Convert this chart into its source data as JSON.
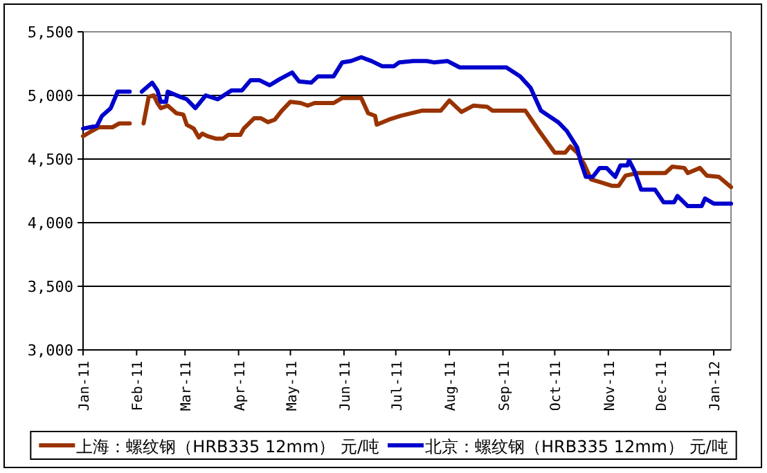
{
  "chart_data": {
    "type": "line",
    "xlim": [
      "2011-01-01",
      "2012-01-11"
    ],
    "xticks": [
      {
        "value": "2011-01-01",
        "label": "Jan-11"
      },
      {
        "value": "2011-02-01",
        "label": "Feb-11"
      },
      {
        "value": "2011-03-01",
        "label": "Mar-11"
      },
      {
        "value": "2011-04-01",
        "label": "Apr-11"
      },
      {
        "value": "2011-05-01",
        "label": "May-11"
      },
      {
        "value": "2011-06-01",
        "label": "Jun-11"
      },
      {
        "value": "2011-07-01",
        "label": "Jul-11"
      },
      {
        "value": "2011-08-01",
        "label": "Aug-11"
      },
      {
        "value": "2011-09-01",
        "label": "Sep-11"
      },
      {
        "value": "2011-10-01",
        "label": "Oct-11"
      },
      {
        "value": "2011-11-01",
        "label": "Nov-11"
      },
      {
        "value": "2011-12-01",
        "label": "Dec-11"
      },
      {
        "value": "2012-01-01",
        "label": "Jan-12"
      }
    ],
    "ylim": [
      3000,
      5500
    ],
    "yticks": [
      {
        "value": 3000,
        "label": "3,000"
      },
      {
        "value": 3500,
        "label": "3,500"
      },
      {
        "value": 4000,
        "label": "4,000"
      },
      {
        "value": 4500,
        "label": "4,500"
      },
      {
        "value": 5000,
        "label": "5,000"
      },
      {
        "value": 5500,
        "label": "5,500"
      }
    ],
    "grid": "y",
    "legend": "bottom",
    "marker": "none",
    "line_style": "solid",
    "series": [
      {
        "name": "上海：螺纹钢（HRB335 12mm） 元/吨",
        "color": "#993300",
        "x": [
          "2011-01-01",
          "2011-01-06",
          "2011-01-10",
          "2011-01-18",
          "2011-01-22",
          "2011-01-28",
          "2011-02-01",
          "2011-02-05",
          "2011-02-08",
          "2011-02-11",
          "2011-02-13",
          "2011-02-15",
          "2011-02-19",
          "2011-02-24",
          "2011-02-28",
          "2011-03-02",
          "2011-03-06",
          "2011-03-09",
          "2011-03-11",
          "2011-03-14",
          "2011-03-19",
          "2011-03-23",
          "2011-03-26",
          "2011-04-02",
          "2011-04-04",
          "2011-04-10",
          "2011-04-14",
          "2011-04-18",
          "2011-04-22",
          "2011-04-26",
          "2011-05-01",
          "2011-05-07",
          "2011-05-11",
          "2011-05-15",
          "2011-05-26",
          "2011-05-31",
          "2011-06-11",
          "2011-06-15",
          "2011-06-19",
          "2011-06-20",
          "2011-06-27",
          "2011-07-04",
          "2011-07-16",
          "2011-07-27",
          "2011-08-01",
          "2011-08-08",
          "2011-08-15",
          "2011-08-23",
          "2011-08-26",
          "2011-09-14",
          "2011-09-22",
          "2011-10-01",
          "2011-10-07",
          "2011-10-10",
          "2011-10-14",
          "2011-10-18",
          "2011-10-22",
          "2011-10-27",
          "2011-11-03",
          "2011-11-07",
          "2011-11-11",
          "2011-11-18",
          "2011-12-04",
          "2011-12-08",
          "2011-12-15",
          "2011-12-17",
          "2011-12-24",
          "2011-12-28",
          "2012-01-04",
          "2012-01-11"
        ],
        "values": [
          4680,
          4720,
          4750,
          4750,
          4780,
          4780,
          null,
          4780,
          4990,
          5000,
          4940,
          4900,
          4920,
          4860,
          4850,
          4770,
          4740,
          4670,
          4700,
          4680,
          4660,
          4660,
          4690,
          4690,
          4740,
          4820,
          4820,
          4790,
          4810,
          4880,
          4950,
          4940,
          4920,
          4940,
          4940,
          4980,
          4980,
          4860,
          4840,
          4770,
          4810,
          4840,
          4880,
          4880,
          4960,
          4870,
          4920,
          4910,
          4880,
          4880,
          4720,
          4550,
          4550,
          4600,
          4550,
          4460,
          4340,
          4320,
          4290,
          4290,
          4370,
          4390,
          4390,
          4440,
          4430,
          4390,
          4430,
          4370,
          4360,
          4280
        ]
      },
      {
        "name": "北京：螺纹钢（HRB335 12mm） 元/吨",
        "color": "#0000cc",
        "x": [
          "2011-01-01",
          "2011-01-05",
          "2011-01-09",
          "2011-01-12",
          "2011-01-17",
          "2011-01-21",
          "2011-01-28",
          "2011-02-01",
          "2011-02-04",
          "2011-02-10",
          "2011-02-13",
          "2011-02-15",
          "2011-02-18",
          "2011-02-19",
          "2011-02-26",
          "2011-03-02",
          "2011-03-07",
          "2011-03-13",
          "2011-03-20",
          "2011-03-28",
          "2011-04-03",
          "2011-04-08",
          "2011-04-13",
          "2011-04-19",
          "2011-04-25",
          "2011-05-02",
          "2011-05-06",
          "2011-05-13",
          "2011-05-17",
          "2011-05-26",
          "2011-05-31",
          "2011-06-05",
          "2011-06-11",
          "2011-06-17",
          "2011-06-23",
          "2011-06-30",
          "2011-07-03",
          "2011-07-11",
          "2011-07-19",
          "2011-07-23",
          "2011-07-31",
          "2011-08-07",
          "2011-09-03",
          "2011-09-11",
          "2011-09-17",
          "2011-09-23",
          "2011-10-03",
          "2011-10-08",
          "2011-10-14",
          "2011-10-16",
          "2011-10-19",
          "2011-10-23",
          "2011-10-27",
          "2011-10-31",
          "2011-11-05",
          "2011-11-08",
          "2011-11-12",
          "2011-11-13",
          "2011-11-16",
          "2011-11-20",
          "2011-11-28",
          "2011-12-03",
          "2011-12-09",
          "2011-12-11",
          "2011-12-17",
          "2011-12-25",
          "2011-12-27",
          "2012-01-01",
          "2012-01-11"
        ],
        "values": [
          4740,
          4750,
          4760,
          4840,
          4900,
          5030,
          5030,
          null,
          5030,
          5100,
          5040,
          4950,
          4950,
          5030,
          4990,
          4970,
          4900,
          5000,
          4970,
          5040,
          5040,
          5120,
          5120,
          5080,
          5130,
          5180,
          5110,
          5100,
          5150,
          5150,
          5260,
          5270,
          5300,
          5270,
          5230,
          5230,
          5260,
          5270,
          5270,
          5260,
          5270,
          5220,
          5220,
          5150,
          5060,
          4880,
          4790,
          4720,
          4590,
          4480,
          4360,
          4360,
          4430,
          4430,
          4360,
          4450,
          4450,
          4490,
          4410,
          4260,
          4260,
          4160,
          4160,
          4210,
          4130,
          4130,
          4190,
          4150,
          4150
        ]
      }
    ]
  }
}
